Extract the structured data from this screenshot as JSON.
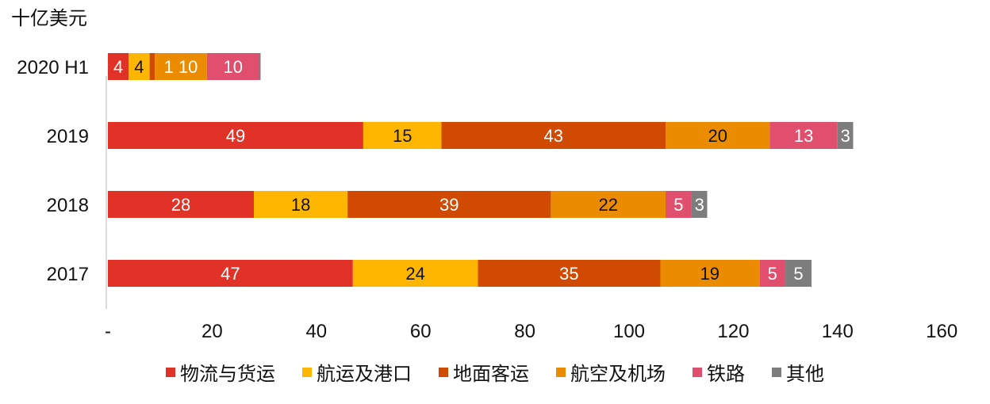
{
  "chart_data": {
    "type": "bar",
    "orientation": "horizontal",
    "stacked": true,
    "unit_label": "十亿美元",
    "categories": [
      "2020 H1",
      "2019",
      "2018",
      "2017"
    ],
    "series": [
      {
        "name": "物流与货运",
        "color": "#e03226",
        "values": [
          4,
          49,
          28,
          47
        ],
        "labels": [
          "4",
          "49",
          "28",
          "47"
        ]
      },
      {
        "name": "航运及港口",
        "color": "#ffb600",
        "values": [
          4,
          15,
          18,
          24
        ],
        "labels": [
          "4",
          "15",
          "18",
          "24"
        ]
      },
      {
        "name": "地面客运",
        "color": "#d04a02",
        "values": [
          1,
          43,
          39,
          35
        ],
        "labels": [
          "",
          "43",
          "39",
          "35"
        ]
      },
      {
        "name": "航空及机场",
        "color": "#eb8c00",
        "values": [
          10,
          20,
          22,
          19
        ],
        "labels": [
          "1 10",
          "20",
          "22",
          "19"
        ]
      },
      {
        "name": "铁路",
        "color": "#e0506e",
        "values": [
          10,
          13,
          5,
          5
        ],
        "labels": [
          "10",
          "13",
          "5",
          "5"
        ]
      },
      {
        "name": "其他",
        "color": "#7d7d7d",
        "values": [
          0.3,
          3,
          3,
          5
        ],
        "labels": [
          "",
          "3",
          "3",
          "5"
        ]
      }
    ],
    "xlim": [
      0,
      160
    ],
    "x_ticks": [
      "-",
      "20",
      "40",
      "60",
      "80",
      "100",
      "120",
      "140",
      "160"
    ],
    "grid": false,
    "legend_position": "bottom"
  }
}
